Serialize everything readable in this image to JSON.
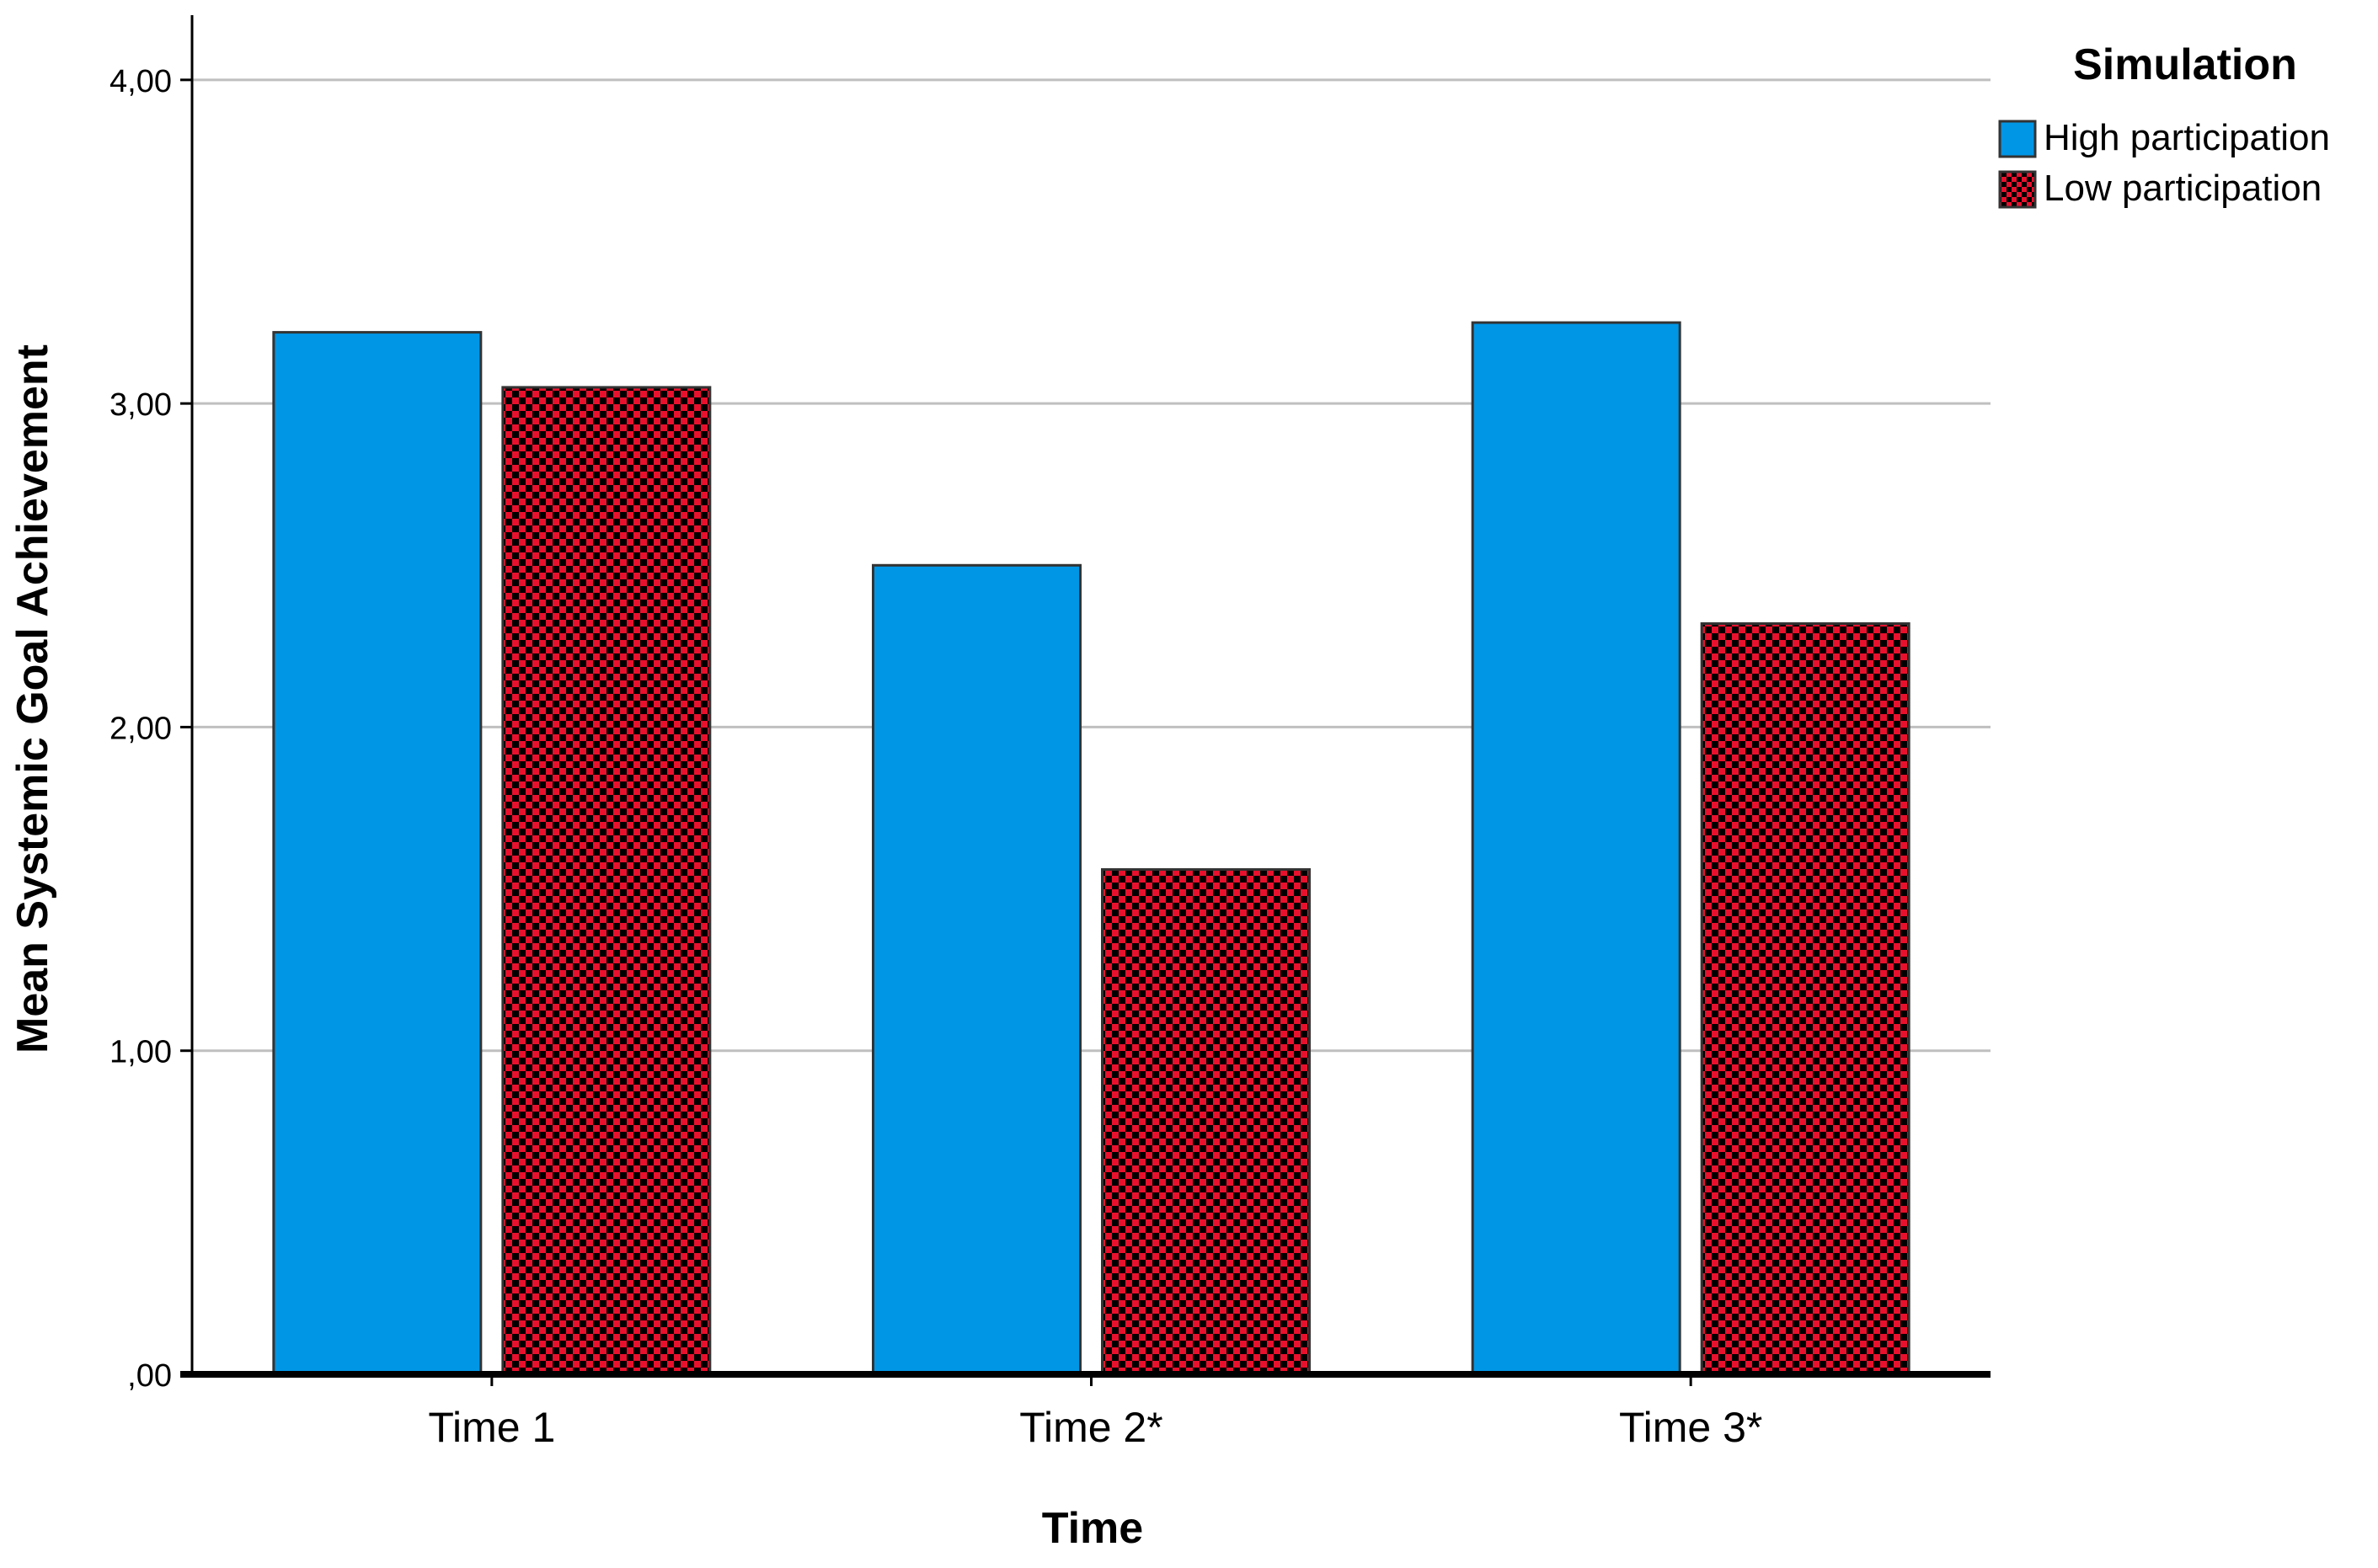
{
  "chart_data": {
    "type": "bar",
    "title": "",
    "xlabel": "Time",
    "ylabel": "Mean Systemic Goal Achievement",
    "categories": [
      "Time 1",
      "Time 2*",
      "Time 3*"
    ],
    "series": [
      {
        "name": "High participation",
        "values": [
          3.22,
          2.5,
          3.25
        ],
        "color": "#0096E6",
        "pattern": "solid"
      },
      {
        "name": "Low participation",
        "values": [
          3.05,
          1.56,
          2.32
        ],
        "color": "#E8112D",
        "pattern": "checker"
      }
    ],
    "ylim": [
      0,
      4.2
    ],
    "yticks": [
      0,
      1,
      2,
      3,
      4
    ],
    "ytick_labels": [
      ",00",
      "1,00",
      "2,00",
      "3,00",
      "4,00"
    ],
    "grid": true,
    "legend": {
      "title": "Simulation",
      "position": "top-right"
    }
  }
}
